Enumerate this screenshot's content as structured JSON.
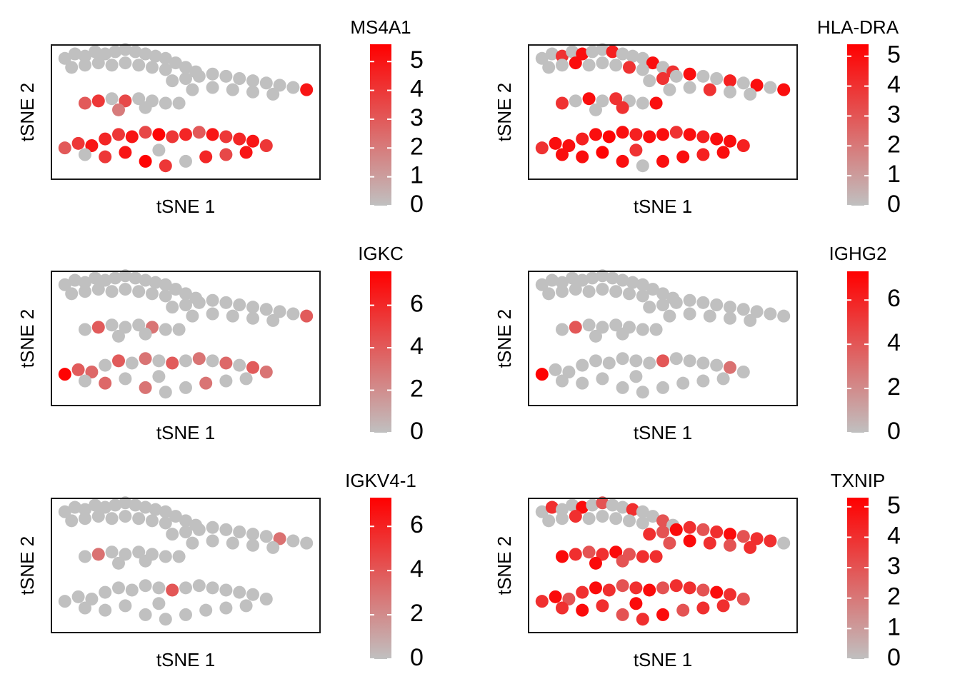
{
  "chart_data": [
    {
      "type": "scatter",
      "title": "MS4A1",
      "xlabel": "tSNE 1",
      "ylabel": "tSNE 2",
      "xlim": [
        -40,
        40
      ],
      "ylim": [
        -30,
        30
      ],
      "low_color": "#c0c0c0",
      "high_color": "#ff0000",
      "clim": [
        0,
        5.6
      ],
      "cticks": [
        0,
        1,
        2,
        3,
        4,
        5
      ],
      "x": [
        -36,
        -33,
        -30,
        -27,
        -24,
        -21,
        -18,
        -15,
        -12,
        -9,
        -6,
        -3,
        0,
        3,
        -34,
        -30,
        -26,
        -22,
        -18,
        -14,
        -10,
        -6,
        -4,
        0,
        4,
        8,
        12,
        16,
        20,
        24,
        28,
        32,
        36,
        2,
        8,
        14,
        20,
        26,
        -30,
        -26,
        -22,
        -18,
        -14,
        -10,
        -6,
        -2,
        -20,
        -12,
        -36,
        -32,
        -28,
        -24,
        -20,
        -16,
        -12,
        -8,
        -4,
        0,
        4,
        8,
        12,
        16,
        20,
        24,
        -30,
        -24,
        -18,
        -12,
        -6,
        0,
        6,
        12,
        18,
        -8
      ],
      "y": [
        24,
        26,
        25,
        27,
        26,
        27,
        28,
        27,
        26,
        25,
        24,
        22,
        20,
        18,
        20,
        21,
        22,
        21,
        22,
        21,
        20,
        19,
        14,
        15,
        16,
        17,
        16,
        15,
        14,
        13,
        12,
        11,
        10,
        10,
        11,
        10,
        9,
        8,
        4,
        5,
        6,
        5,
        6,
        5,
        4,
        4,
        1,
        2,
        -16,
        -14,
        -15,
        -12,
        -10,
        -11,
        -9,
        -10,
        -11,
        -10,
        -9,
        -10,
        -11,
        -12,
        -13,
        -15,
        -19,
        -20,
        -18,
        -22,
        -24,
        -22,
        -20,
        -19,
        -18,
        -17
      ],
      "values": [
        0,
        0,
        0,
        0,
        0,
        0,
        0,
        0,
        0,
        0,
        0,
        0,
        0,
        0,
        0,
        0,
        0,
        0,
        0,
        0,
        0,
        0,
        0,
        0,
        0,
        0,
        0,
        0,
        0,
        0,
        0,
        0,
        5,
        0,
        0,
        0,
        0,
        0,
        3,
        4,
        0,
        3.5,
        0,
        0,
        0,
        0,
        2,
        0,
        3,
        4,
        5,
        4.5,
        4,
        5,
        3.5,
        5.5,
        4,
        4.5,
        3,
        5,
        4,
        4.5,
        5,
        4,
        0,
        4,
        5,
        5.5,
        4,
        0,
        4.5,
        3.5,
        5,
        0
      ]
    },
    {
      "type": "scatter",
      "title": "HLA-DRA",
      "xlabel": "tSNE 1",
      "ylabel": "tSNE 2",
      "xlim": [
        -40,
        40
      ],
      "ylim": [
        -30,
        30
      ],
      "low_color": "#c0c0c0",
      "high_color": "#ff0000",
      "clim": [
        0,
        5.4
      ],
      "cticks": [
        0,
        1,
        2,
        3,
        4,
        5
      ],
      "x": [
        -36,
        -33,
        -30,
        -27,
        -24,
        -21,
        -18,
        -15,
        -12,
        -9,
        -6,
        -3,
        0,
        3,
        -34,
        -30,
        -26,
        -22,
        -18,
        -14,
        -10,
        -6,
        -4,
        0,
        4,
        8,
        12,
        16,
        20,
        24,
        28,
        32,
        36,
        2,
        8,
        14,
        20,
        26,
        -30,
        -26,
        -22,
        -18,
        -14,
        -10,
        -6,
        -2,
        -20,
        -12,
        -36,
        -32,
        -28,
        -24,
        -20,
        -16,
        -12,
        -8,
        -4,
        0,
        4,
        8,
        12,
        16,
        20,
        24,
        -30,
        -24,
        -18,
        -12,
        -6,
        0,
        6,
        12,
        18,
        -8
      ],
      "y": [
        24,
        26,
        25,
        27,
        26,
        27,
        28,
        27,
        26,
        25,
        24,
        22,
        20,
        18,
        20,
        21,
        22,
        21,
        22,
        21,
        20,
        19,
        14,
        15,
        16,
        17,
        16,
        15,
        14,
        13,
        12,
        11,
        10,
        10,
        11,
        10,
        9,
        8,
        4,
        5,
        6,
        5,
        6,
        5,
        4,
        4,
        1,
        2,
        -16,
        -14,
        -15,
        -12,
        -10,
        -11,
        -9,
        -10,
        -11,
        -10,
        -9,
        -10,
        -11,
        -12,
        -13,
        -15,
        -19,
        -20,
        -18,
        -22,
        -24,
        -22,
        -20,
        -19,
        -18,
        -17
      ],
      "values": [
        0,
        0,
        4,
        0,
        5,
        0,
        0,
        4.5,
        0,
        0,
        0,
        5,
        0,
        4,
        0,
        0,
        5,
        0,
        0,
        0,
        4,
        0,
        0,
        4,
        0,
        5,
        0,
        0,
        4.5,
        0,
        5,
        0,
        5,
        0,
        0,
        4,
        0,
        0,
        4,
        0,
        5,
        0,
        4,
        0,
        0,
        5,
        0,
        4,
        4,
        5,
        5,
        4.5,
        5,
        5.3,
        5,
        4.5,
        5,
        5,
        4,
        5,
        4.5,
        5,
        5,
        4.5,
        5,
        5,
        5.3,
        5,
        0,
        5,
        5,
        4.5,
        5,
        4
      ]
    },
    {
      "type": "scatter",
      "title": "IGKC",
      "xlabel": "tSNE 1",
      "ylabel": "tSNE 2",
      "xlim": [
        -40,
        40
      ],
      "ylim": [
        -30,
        30
      ],
      "low_color": "#c0c0c0",
      "high_color": "#ff0000",
      "clim": [
        0,
        7.6
      ],
      "cticks": [
        0,
        2,
        4,
        6
      ],
      "x": [
        -36,
        -33,
        -30,
        -27,
        -24,
        -21,
        -18,
        -15,
        -12,
        -9,
        -6,
        -3,
        0,
        3,
        -34,
        -30,
        -26,
        -22,
        -18,
        -14,
        -10,
        -6,
        -4,
        0,
        4,
        8,
        12,
        16,
        20,
        24,
        28,
        32,
        36,
        2,
        8,
        14,
        20,
        26,
        -30,
        -26,
        -22,
        -18,
        -14,
        -10,
        -6,
        -2,
        -20,
        -12,
        -36,
        -32,
        -28,
        -24,
        -20,
        -16,
        -12,
        -8,
        -4,
        0,
        4,
        8,
        12,
        16,
        20,
        24,
        -30,
        -24,
        -18,
        -12,
        -6,
        0,
        6,
        12,
        18,
        -8
      ],
      "y": [
        24,
        26,
        25,
        27,
        26,
        27,
        28,
        27,
        26,
        25,
        24,
        22,
        20,
        18,
        20,
        21,
        22,
        21,
        22,
        21,
        20,
        19,
        14,
        15,
        16,
        17,
        16,
        15,
        14,
        13,
        12,
        11,
        10,
        10,
        11,
        10,
        9,
        8,
        4,
        5,
        6,
        5,
        6,
        5,
        4,
        4,
        1,
        2,
        -16,
        -14,
        -15,
        -12,
        -10,
        -11,
        -9,
        -10,
        -11,
        -10,
        -9,
        -10,
        -11,
        -12,
        -13,
        -15,
        -19,
        -20,
        -18,
        -22,
        -24,
        -22,
        -20,
        -19,
        -18,
        -17
      ],
      "values": [
        0,
        0,
        0,
        0,
        0,
        0,
        0,
        0,
        0,
        0,
        0,
        0,
        0,
        0,
        0,
        0,
        0,
        0,
        0,
        0,
        0,
        0,
        0,
        0,
        0,
        0,
        0,
        0,
        0,
        0,
        0,
        0,
        4,
        0,
        0,
        0,
        0,
        0,
        0,
        4,
        0,
        0,
        0,
        3,
        0,
        0,
        0,
        0,
        7.5,
        4,
        3.5,
        0,
        4,
        0,
        3,
        0,
        4,
        0,
        3,
        0,
        3.5,
        0,
        4,
        3,
        0,
        3.5,
        0,
        3,
        0,
        0,
        3,
        0,
        0,
        0
      ]
    },
    {
      "type": "scatter",
      "title": "IGHG2",
      "xlabel": "tSNE 1",
      "ylabel": "tSNE 2",
      "xlim": [
        -40,
        40
      ],
      "ylim": [
        -30,
        30
      ],
      "low_color": "#c0c0c0",
      "high_color": "#ff0000",
      "clim": [
        0,
        7.3
      ],
      "cticks": [
        0,
        2,
        4,
        6
      ],
      "x": [
        -36,
        -33,
        -30,
        -27,
        -24,
        -21,
        -18,
        -15,
        -12,
        -9,
        -6,
        -3,
        0,
        3,
        -34,
        -30,
        -26,
        -22,
        -18,
        -14,
        -10,
        -6,
        -4,
        0,
        4,
        8,
        12,
        16,
        20,
        24,
        28,
        32,
        36,
        2,
        8,
        14,
        20,
        26,
        -30,
        -26,
        -22,
        -18,
        -14,
        -10,
        -6,
        -2,
        -20,
        -12,
        -36,
        -32,
        -28,
        -24,
        -20,
        -16,
        -12,
        -8,
        -4,
        0,
        4,
        8,
        12,
        16,
        20,
        24,
        -30,
        -24,
        -18,
        -12,
        -6,
        0,
        6,
        12,
        18,
        -8
      ],
      "y": [
        24,
        26,
        25,
        27,
        26,
        27,
        28,
        27,
        26,
        25,
        24,
        22,
        20,
        18,
        20,
        21,
        22,
        21,
        22,
        21,
        20,
        19,
        14,
        15,
        16,
        17,
        16,
        15,
        14,
        13,
        12,
        11,
        10,
        10,
        11,
        10,
        9,
        8,
        4,
        5,
        6,
        5,
        6,
        5,
        4,
        4,
        1,
        2,
        -16,
        -14,
        -15,
        -12,
        -10,
        -11,
        -9,
        -10,
        -11,
        -10,
        -9,
        -10,
        -11,
        -12,
        -13,
        -15,
        -19,
        -20,
        -18,
        -22,
        -24,
        -22,
        -20,
        -19,
        -18,
        -17
      ],
      "values": [
        0,
        0,
        0,
        0,
        0,
        0,
        0,
        0,
        0,
        0,
        0,
        0,
        0,
        0,
        0,
        0,
        0,
        0,
        0,
        0,
        0,
        0,
        0,
        0,
        0,
        0,
        0,
        0,
        0,
        0,
        0,
        0,
        0,
        0,
        0,
        0,
        0,
        0,
        0,
        4,
        0,
        0,
        0,
        0,
        0,
        0,
        0,
        0,
        7.2,
        0,
        0,
        0,
        0,
        0,
        0,
        0,
        0,
        4,
        0,
        0,
        0,
        0,
        3,
        0,
        0,
        0,
        0,
        0,
        0,
        0,
        0,
        0,
        0,
        0
      ]
    },
    {
      "type": "scatter",
      "title": "IGKV4-1",
      "xlabel": "tSNE 1",
      "ylabel": "tSNE 2",
      "xlim": [
        -40,
        40
      ],
      "ylim": [
        -30,
        30
      ],
      "low_color": "#c0c0c0",
      "high_color": "#ff0000",
      "clim": [
        0,
        7.3
      ],
      "cticks": [
        0,
        2,
        4,
        6
      ],
      "x": [
        -36,
        -33,
        -30,
        -27,
        -24,
        -21,
        -18,
        -15,
        -12,
        -9,
        -6,
        -3,
        0,
        3,
        -34,
        -30,
        -26,
        -22,
        -18,
        -14,
        -10,
        -6,
        -4,
        0,
        4,
        8,
        12,
        16,
        20,
        24,
        28,
        32,
        36,
        2,
        8,
        14,
        20,
        26,
        -30,
        -26,
        -22,
        -18,
        -14,
        -10,
        -6,
        -2,
        -20,
        -12,
        -36,
        -32,
        -28,
        -24,
        -20,
        -16,
        -12,
        -8,
        -4,
        0,
        4,
        8,
        12,
        16,
        20,
        24,
        -30,
        -24,
        -18,
        -12,
        -6,
        0,
        6,
        12,
        18,
        -8
      ],
      "y": [
        24,
        26,
        25,
        27,
        26,
        27,
        28,
        27,
        26,
        25,
        24,
        22,
        20,
        18,
        20,
        21,
        22,
        21,
        22,
        21,
        20,
        19,
        14,
        15,
        16,
        17,
        16,
        15,
        14,
        13,
        12,
        11,
        10,
        10,
        11,
        10,
        9,
        8,
        4,
        5,
        6,
        5,
        6,
        5,
        4,
        4,
        1,
        2,
        -16,
        -14,
        -15,
        -12,
        -10,
        -11,
        -9,
        -10,
        -11,
        -10,
        -9,
        -10,
        -11,
        -12,
        -13,
        -15,
        -19,
        -20,
        -18,
        -22,
        -24,
        -22,
        -20,
        -19,
        -18,
        -17
      ],
      "values": [
        0,
        0,
        0,
        0,
        0,
        0,
        0,
        0,
        0,
        0,
        0,
        0,
        0,
        0,
        0,
        0,
        0,
        0,
        0,
        0,
        0,
        0,
        0,
        0,
        0,
        0,
        0,
        0,
        0,
        0,
        3,
        0,
        0,
        0,
        0,
        0,
        0,
        0,
        0,
        3,
        0,
        0,
        0,
        0,
        0,
        0,
        0,
        0,
        0,
        0,
        0,
        0,
        0,
        0,
        0,
        0,
        4,
        0,
        0,
        0,
        0,
        0,
        0,
        0,
        0,
        0,
        0,
        0,
        0,
        0,
        0,
        0,
        0,
        0
      ]
    },
    {
      "type": "scatter",
      "title": "TXNIP",
      "xlabel": "tSNE 1",
      "ylabel": "tSNE 2",
      "xlim": [
        -40,
        40
      ],
      "ylim": [
        -30,
        30
      ],
      "low_color": "#c0c0c0",
      "high_color": "#ff0000",
      "clim": [
        0,
        5.3
      ],
      "cticks": [
        0,
        1,
        2,
        3,
        4,
        5
      ],
      "x": [
        -36,
        -33,
        -30,
        -27,
        -24,
        -21,
        -18,
        -15,
        -12,
        -9,
        -6,
        -3,
        0,
        3,
        -34,
        -30,
        -26,
        -22,
        -18,
        -14,
        -10,
        -6,
        -4,
        0,
        4,
        8,
        12,
        16,
        20,
        24,
        28,
        32,
        36,
        2,
        8,
        14,
        20,
        26,
        -30,
        -26,
        -22,
        -18,
        -14,
        -10,
        -6,
        -2,
        -20,
        -12,
        -36,
        -32,
        -28,
        -24,
        -20,
        -16,
        -12,
        -8,
        -4,
        0,
        4,
        8,
        12,
        16,
        20,
        24,
        -30,
        -24,
        -18,
        -12,
        -6,
        0,
        6,
        12,
        18,
        -8
      ],
      "y": [
        24,
        26,
        25,
        27,
        26,
        27,
        28,
        27,
        26,
        25,
        24,
        22,
        20,
        18,
        20,
        21,
        22,
        21,
        22,
        21,
        20,
        19,
        14,
        15,
        16,
        17,
        16,
        15,
        14,
        13,
        12,
        11,
        10,
        10,
        11,
        10,
        9,
        8,
        4,
        5,
        6,
        5,
        6,
        5,
        4,
        4,
        1,
        2,
        -16,
        -14,
        -15,
        -12,
        -10,
        -11,
        -9,
        -10,
        -11,
        -10,
        -9,
        -10,
        -11,
        -12,
        -13,
        -15,
        -19,
        -20,
        -18,
        -22,
        -24,
        -22,
        -20,
        -19,
        -18,
        -17
      ],
      "values": [
        0,
        4,
        0,
        0,
        5,
        0,
        3,
        0,
        0,
        4,
        0,
        0,
        3,
        0,
        0,
        0,
        4,
        0,
        0,
        0,
        0,
        0,
        4,
        3,
        5,
        4,
        3,
        4,
        5,
        3,
        4,
        4,
        0,
        3,
        5,
        4,
        3,
        4,
        5,
        4,
        3,
        4,
        5,
        3,
        4,
        4,
        5,
        3,
        4,
        5,
        3,
        4,
        5,
        4,
        3,
        4,
        5,
        3,
        4,
        4,
        3,
        5,
        4,
        3,
        4,
        5,
        4,
        3,
        4,
        5,
        3,
        4,
        4,
        5
      ]
    }
  ]
}
